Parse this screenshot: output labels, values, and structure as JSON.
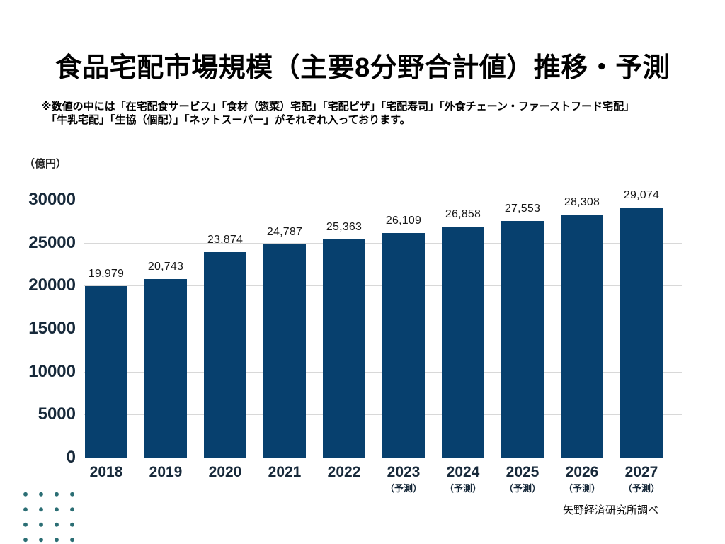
{
  "slide": {
    "title": "食品宅配市場規模（主要8分野合計値）推移・予測",
    "note_lines": [
      "※数値の中には「在宅配食サービス」「食材（惣菜）宅配」「宅配ピザ」「宅配寿司」「外食チェーン・ファーストフード宅配」",
      "「牛乳宅配」「生協（個配）」「ネットスーパー」がそれぞれ入っております。"
    ],
    "source": "矢野経済研究所調べ"
  },
  "chart_data": {
    "type": "bar",
    "title": "食品宅配市場規模（主要8分野合計値）推移・予測",
    "unit_label": "（億円）",
    "ylabel": "億円",
    "categories": [
      "2018",
      "2019",
      "2020",
      "2021",
      "2022",
      "2023",
      "2024",
      "2025",
      "2026",
      "2027"
    ],
    "category_sublabels": [
      "",
      "",
      "",
      "",
      "",
      "（予測）",
      "（予測）",
      "（予測）",
      "（予測）",
      "（予測）"
    ],
    "values": [
      19979,
      20743,
      23874,
      24787,
      25363,
      26109,
      26858,
      27553,
      28308,
      29074
    ],
    "value_labels": [
      "19,979",
      "20,743",
      "23,874",
      "24,787",
      "25,363",
      "26,109",
      "26,858",
      "27,553",
      "28,308",
      "29,074"
    ],
    "y_ticks": [
      0,
      5000,
      10000,
      15000,
      20000,
      25000,
      30000
    ],
    "ylim": [
      0,
      30000
    ],
    "grid": true,
    "legend": "none"
  },
  "colors": {
    "bar": "#07406e",
    "axis_text": "#17293a",
    "value_label": "#161616",
    "gridline": "#d8d8d8",
    "dot_decoration": "#2b6e74",
    "background": "#ffffff"
  }
}
